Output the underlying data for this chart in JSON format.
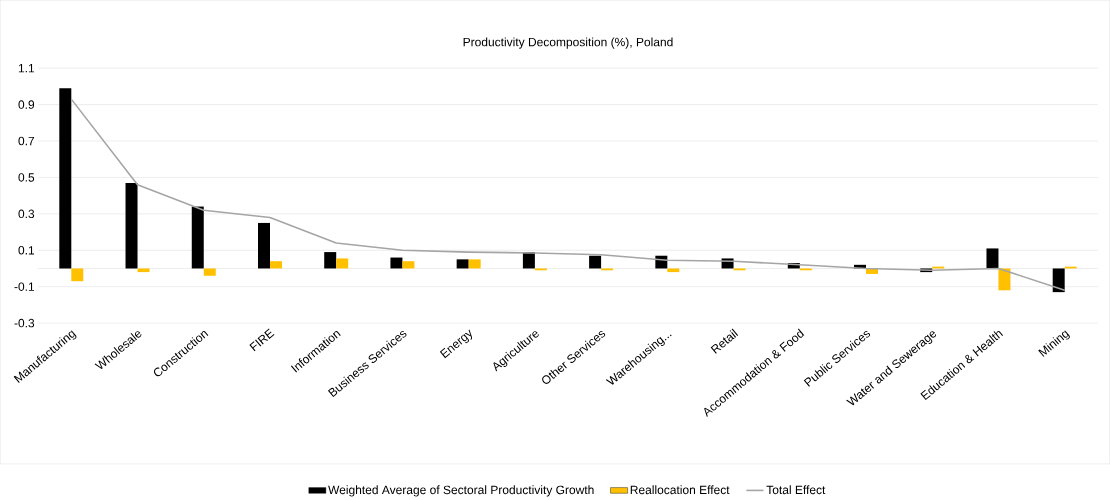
{
  "chart_data": {
    "type": "bar",
    "title": "Productivity  Decomposition  (%), Poland",
    "categories": [
      "Manufacturing",
      "Wholesale",
      "Construction",
      "FIRE",
      "Information",
      "Business Services",
      "Energy",
      "Agriculture",
      "Other Services",
      "Warehousing...",
      "Retail",
      "Accommodation & Food",
      "Public Services",
      "Water and Sewerage",
      "Education & Health",
      "Mining"
    ],
    "series": [
      {
        "name": "Weighted Average of Sectoral Productivity Growth",
        "color": "#000000",
        "values": [
          0.99,
          0.47,
          0.34,
          0.25,
          0.09,
          0.06,
          0.05,
          0.09,
          0.07,
          0.07,
          0.055,
          0.03,
          0.02,
          -0.02,
          0.11,
          -0.13
        ]
      },
      {
        "name": "Reallocation Effect",
        "color": "#ffc000",
        "values": [
          -0.07,
          -0.02,
          -0.04,
          0.04,
          0.055,
          0.04,
          0.05,
          -0.01,
          -0.01,
          -0.02,
          -0.01,
          -0.01,
          -0.03,
          0.01,
          -0.12,
          0.01
        ]
      },
      {
        "name": "Total Effect",
        "type": "line",
        "color": "#a5a5a5",
        "values": [
          0.93,
          0.46,
          0.32,
          0.28,
          0.14,
          0.1,
          0.09,
          0.085,
          0.075,
          0.045,
          0.04,
          0.02,
          0.0,
          -0.01,
          0.0,
          -0.12
        ]
      }
    ],
    "ylim": [
      -0.3,
      1.1
    ],
    "yticks": [
      -0.3,
      -0.1,
      0.1,
      0.3,
      0.5,
      0.7,
      0.9,
      1.1
    ],
    "grid": "y",
    "legend": "bottom"
  }
}
